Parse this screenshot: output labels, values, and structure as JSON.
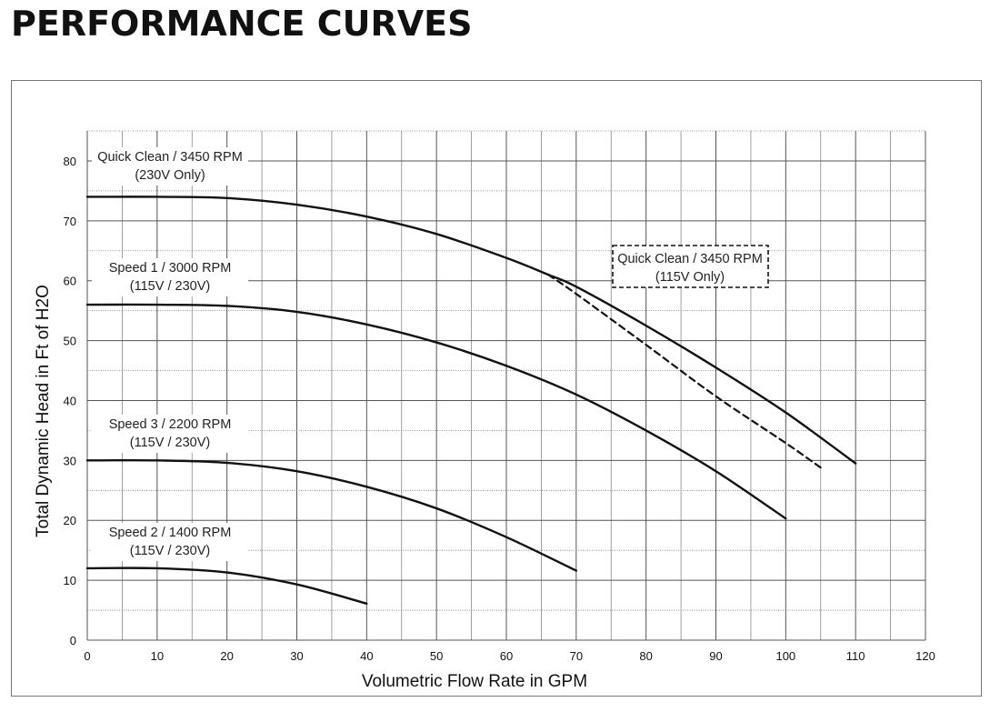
{
  "page": {
    "title": "PERFORMANCE CURVES"
  },
  "chart_data": {
    "type": "line",
    "title": "",
    "xlabel": "Volumetric Flow Rate in GPM",
    "ylabel": "Total Dynamic Head in Ft of H2O",
    "xlim": [
      0,
      120
    ],
    "ylim": [
      0,
      85
    ],
    "xticks": [
      0,
      10,
      20,
      30,
      40,
      50,
      60,
      70,
      80,
      90,
      100,
      110,
      120
    ],
    "yticks": [
      0,
      10,
      20,
      30,
      40,
      50,
      60,
      70,
      80
    ],
    "grid": true,
    "series": [
      {
        "name": "Quick Clean / 3450 RPM (230V Only)",
        "label_lines": [
          "Quick Clean / 3450 RPM",
          "(230V Only)"
        ],
        "style": "solid",
        "x": [
          0,
          10,
          20,
          30,
          40,
          50,
          60,
          66,
          70,
          80,
          90,
          100,
          110
        ],
        "y": [
          74,
          74,
          73.8,
          72.7,
          70.7,
          67.8,
          63.8,
          61,
          59,
          52.5,
          45.5,
          38,
          29.5
        ]
      },
      {
        "name": "Quick Clean / 3450 RPM (115V Only)",
        "label_lines": [
          "Quick Clean / 3450 RPM",
          "(115V Only)"
        ],
        "style": "dashed",
        "x": [
          66,
          70,
          80,
          90,
          100,
          105
        ],
        "y": [
          61,
          57.8,
          49.3,
          40.7,
          32.9,
          28.8
        ]
      },
      {
        "name": "Speed 1 / 3000 RPM (115V / 230V)",
        "label_lines": [
          "Speed 1 / 3000 RPM",
          "(115V / 230V)"
        ],
        "style": "solid",
        "x": [
          0,
          10,
          20,
          30,
          40,
          50,
          60,
          70,
          80,
          90,
          100
        ],
        "y": [
          56,
          56,
          55.8,
          54.8,
          52.7,
          49.7,
          45.8,
          41,
          35,
          28.2,
          20.3
        ]
      },
      {
        "name": "Speed 3 / 2200 RPM (115V / 230V)",
        "label_lines": [
          "Speed 3 / 2200 RPM",
          "(115V / 230V)"
        ],
        "style": "solid",
        "x": [
          0,
          10,
          20,
          30,
          40,
          50,
          60,
          70
        ],
        "y": [
          30,
          30,
          29.6,
          28.2,
          25.6,
          22,
          17.2,
          11.6
        ]
      },
      {
        "name": "Speed 2 / 1400 RPM (115V / 230V)",
        "label_lines": [
          "Speed 2 / 1400 RPM",
          "(115V / 230V)"
        ],
        "style": "solid",
        "x": [
          0,
          10,
          20,
          30,
          40
        ],
        "y": [
          12,
          12,
          11.3,
          9.3,
          6.1
        ]
      }
    ]
  }
}
